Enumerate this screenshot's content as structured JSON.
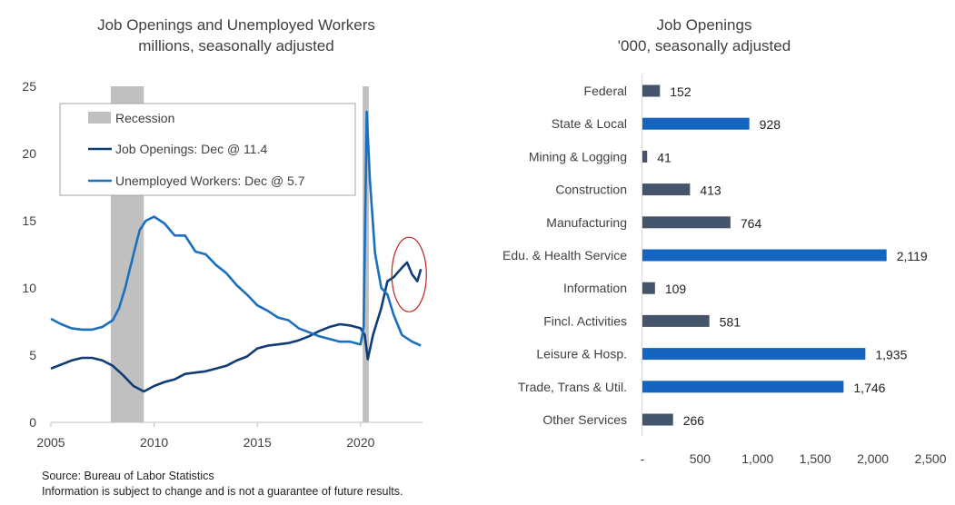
{
  "left_chart": {
    "title_line1": "Job Openings and Unemployed Workers",
    "title_line2": "millions, seasonally adjusted",
    "legend": {
      "recession": "Recession",
      "job_openings": "Job Openings: Dec @ 11.4",
      "unemployed": "Unemployed Workers: Dec @ 5.7"
    },
    "colors": {
      "job_openings": "#0f3d73",
      "unemployed": "#1a6fc1",
      "recession": "#c0c0c0",
      "highlight_circle": "#c0201f"
    }
  },
  "right_chart": {
    "title_line1": "Job Openings",
    "title_line2": "'000, seasonally adjusted",
    "colors": {
      "dark_bar": "#44546a",
      "blue_bar": "#1565c0"
    }
  },
  "footnotes": {
    "source": "Source: Bureau of Labor Statistics",
    "disclaimer": "Information is subject to change and is not a guarantee of future results."
  },
  "chart_data": [
    {
      "type": "line",
      "title": "Job Openings and Unemployed Workers millions, seasonally adjusted",
      "xlim": [
        2005,
        2023
      ],
      "ylim": [
        0,
        25
      ],
      "x_ticks": [
        "2005",
        "2010",
        "2015",
        "2020"
      ],
      "y_ticks": [
        "0",
        "5",
        "10",
        "15",
        "20",
        "25"
      ],
      "recessions": [
        [
          2007.9,
          2009.5
        ],
        [
          2020.1,
          2020.4
        ]
      ],
      "grid": false,
      "legend_position": "top-left",
      "series": [
        {
          "name": "Job Openings: Dec @ 11.4",
          "x": [
            2005,
            2005.5,
            2006,
            2006.5,
            2007,
            2007.5,
            2008,
            2008.5,
            2009,
            2009.5,
            2010,
            2010.5,
            2011,
            2011.5,
            2012,
            2012.5,
            2013,
            2013.5,
            2014,
            2014.5,
            2015,
            2015.5,
            2016,
            2016.5,
            2017,
            2017.5,
            2018,
            2018.5,
            2019,
            2019.5,
            2020,
            2020.2,
            2020.35,
            2020.6,
            2021,
            2021.3,
            2021.6,
            2022,
            2022.25,
            2022.5,
            2022.75,
            2022.92
          ],
          "values": [
            4.0,
            4.3,
            4.6,
            4.8,
            4.8,
            4.6,
            4.2,
            3.5,
            2.7,
            2.3,
            2.7,
            3.0,
            3.2,
            3.6,
            3.7,
            3.8,
            4.0,
            4.2,
            4.6,
            4.9,
            5.5,
            5.7,
            5.8,
            5.9,
            6.1,
            6.4,
            6.8,
            7.1,
            7.3,
            7.2,
            7.0,
            6.5,
            4.7,
            6.5,
            8.5,
            10.5,
            10.8,
            11.5,
            11.9,
            11.0,
            10.5,
            11.4
          ]
        },
        {
          "name": "Unemployed Workers: Dec @ 5.7",
          "x": [
            2005,
            2005.5,
            2006,
            2006.5,
            2007,
            2007.5,
            2008,
            2008.3,
            2008.6,
            2009,
            2009.3,
            2009.6,
            2010,
            2010.5,
            2011,
            2011.5,
            2012,
            2012.5,
            2013,
            2013.5,
            2014,
            2014.5,
            2015,
            2015.5,
            2016,
            2016.5,
            2017,
            2017.5,
            2018,
            2018.5,
            2019,
            2019.5,
            2020,
            2020.15,
            2020.3,
            2020.45,
            2020.7,
            2021,
            2021.3,
            2021.6,
            2022,
            2022.5,
            2022.92
          ],
          "values": [
            7.7,
            7.3,
            7.0,
            6.9,
            6.9,
            7.1,
            7.6,
            8.5,
            10.0,
            12.5,
            14.3,
            15.0,
            15.3,
            14.8,
            13.9,
            13.9,
            12.7,
            12.5,
            11.7,
            11.1,
            10.2,
            9.5,
            8.7,
            8.3,
            7.8,
            7.6,
            7.0,
            6.7,
            6.4,
            6.2,
            6.0,
            6.0,
            5.8,
            7.1,
            23.1,
            18.0,
            12.6,
            10.0,
            9.5,
            8.0,
            6.5,
            6.0,
            5.7
          ]
        }
      ]
    },
    {
      "type": "bar",
      "orientation": "horizontal",
      "title": "Job Openings '000, seasonally adjusted",
      "categories": [
        "Federal",
        "State & Local",
        "Mining & Logging",
        "Construction",
        "Manufacturing",
        "Edu. & Health Service",
        "Information",
        "Fincl. Activities",
        "Leisure & Hosp.",
        "Trade, Trans & Util.",
        "Other Services"
      ],
      "values": [
        152,
        928,
        41,
        413,
        764,
        2119,
        109,
        581,
        1935,
        1746,
        266
      ],
      "value_labels": [
        "152",
        "928",
        "41",
        "413",
        "764",
        "2,119",
        "109",
        "581",
        "1,935",
        "1,746",
        "266"
      ],
      "highlight": [
        false,
        true,
        false,
        false,
        false,
        true,
        false,
        false,
        true,
        true,
        false
      ],
      "xlim": [
        0,
        2500
      ],
      "x_ticks": [
        "-",
        "500",
        "1,000",
        "1,500",
        "2,000",
        "2,500"
      ],
      "grid": false
    }
  ]
}
